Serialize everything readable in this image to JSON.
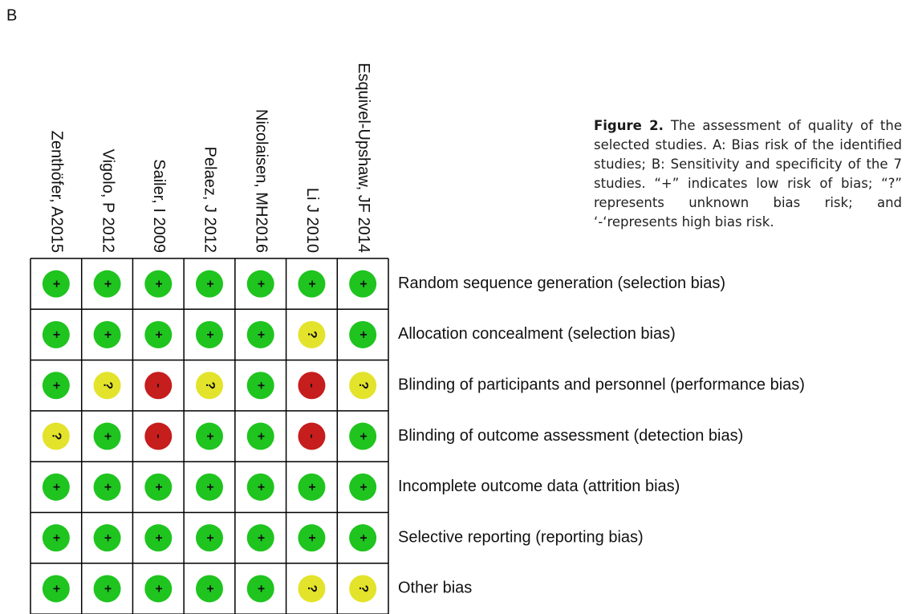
{
  "panel_label": "B",
  "studies": [
    "Zenthöfer, A2015",
    "Vigolo, P 2012",
    "Sailer, I 2009",
    "Pelaez, J 2012",
    "Nicolaisen, MH2016",
    "Li J 2010",
    "Esquivel-Upshaw, JF 2014"
  ],
  "domains": [
    "Random sequence generation (selection bias)",
    "Allocation concealment (selection bias)",
    "Blinding of participants and personnel (performance bias)",
    "Blinding of outcome assessment (detection bias)",
    "Incomplete outcome data (attrition bias)",
    "Selective reporting (reporting bias)",
    "Other bias"
  ],
  "grid": [
    [
      "+",
      "+",
      "+",
      "+",
      "+",
      "+",
      "+"
    ],
    [
      "+",
      "+",
      "+",
      "+",
      "+",
      "?",
      "+"
    ],
    [
      "+",
      "?",
      "-",
      "?",
      "+",
      "-",
      "?"
    ],
    [
      "?",
      "+",
      "-",
      "+",
      "+",
      "-",
      "+"
    ],
    [
      "+",
      "+",
      "+",
      "+",
      "+",
      "+",
      "+"
    ],
    [
      "+",
      "+",
      "+",
      "+",
      "+",
      "+",
      "+"
    ],
    [
      "+",
      "+",
      "+",
      "+",
      "+",
      "?",
      "?"
    ]
  ],
  "risk_colors": {
    "+": "#1fc41f",
    "?": "#e3e32b",
    "-": "#c61d1d"
  },
  "caption": {
    "label": "Figure 2.",
    "text": "The assessment of quality of the selected studies. A: Bias risk of the identified studies; B: Sensitivity and specificity of the 7 studies. “+” indicates low risk of bias; “?” represents unknown bias risk; and ‘-‘represents high bias risk."
  }
}
